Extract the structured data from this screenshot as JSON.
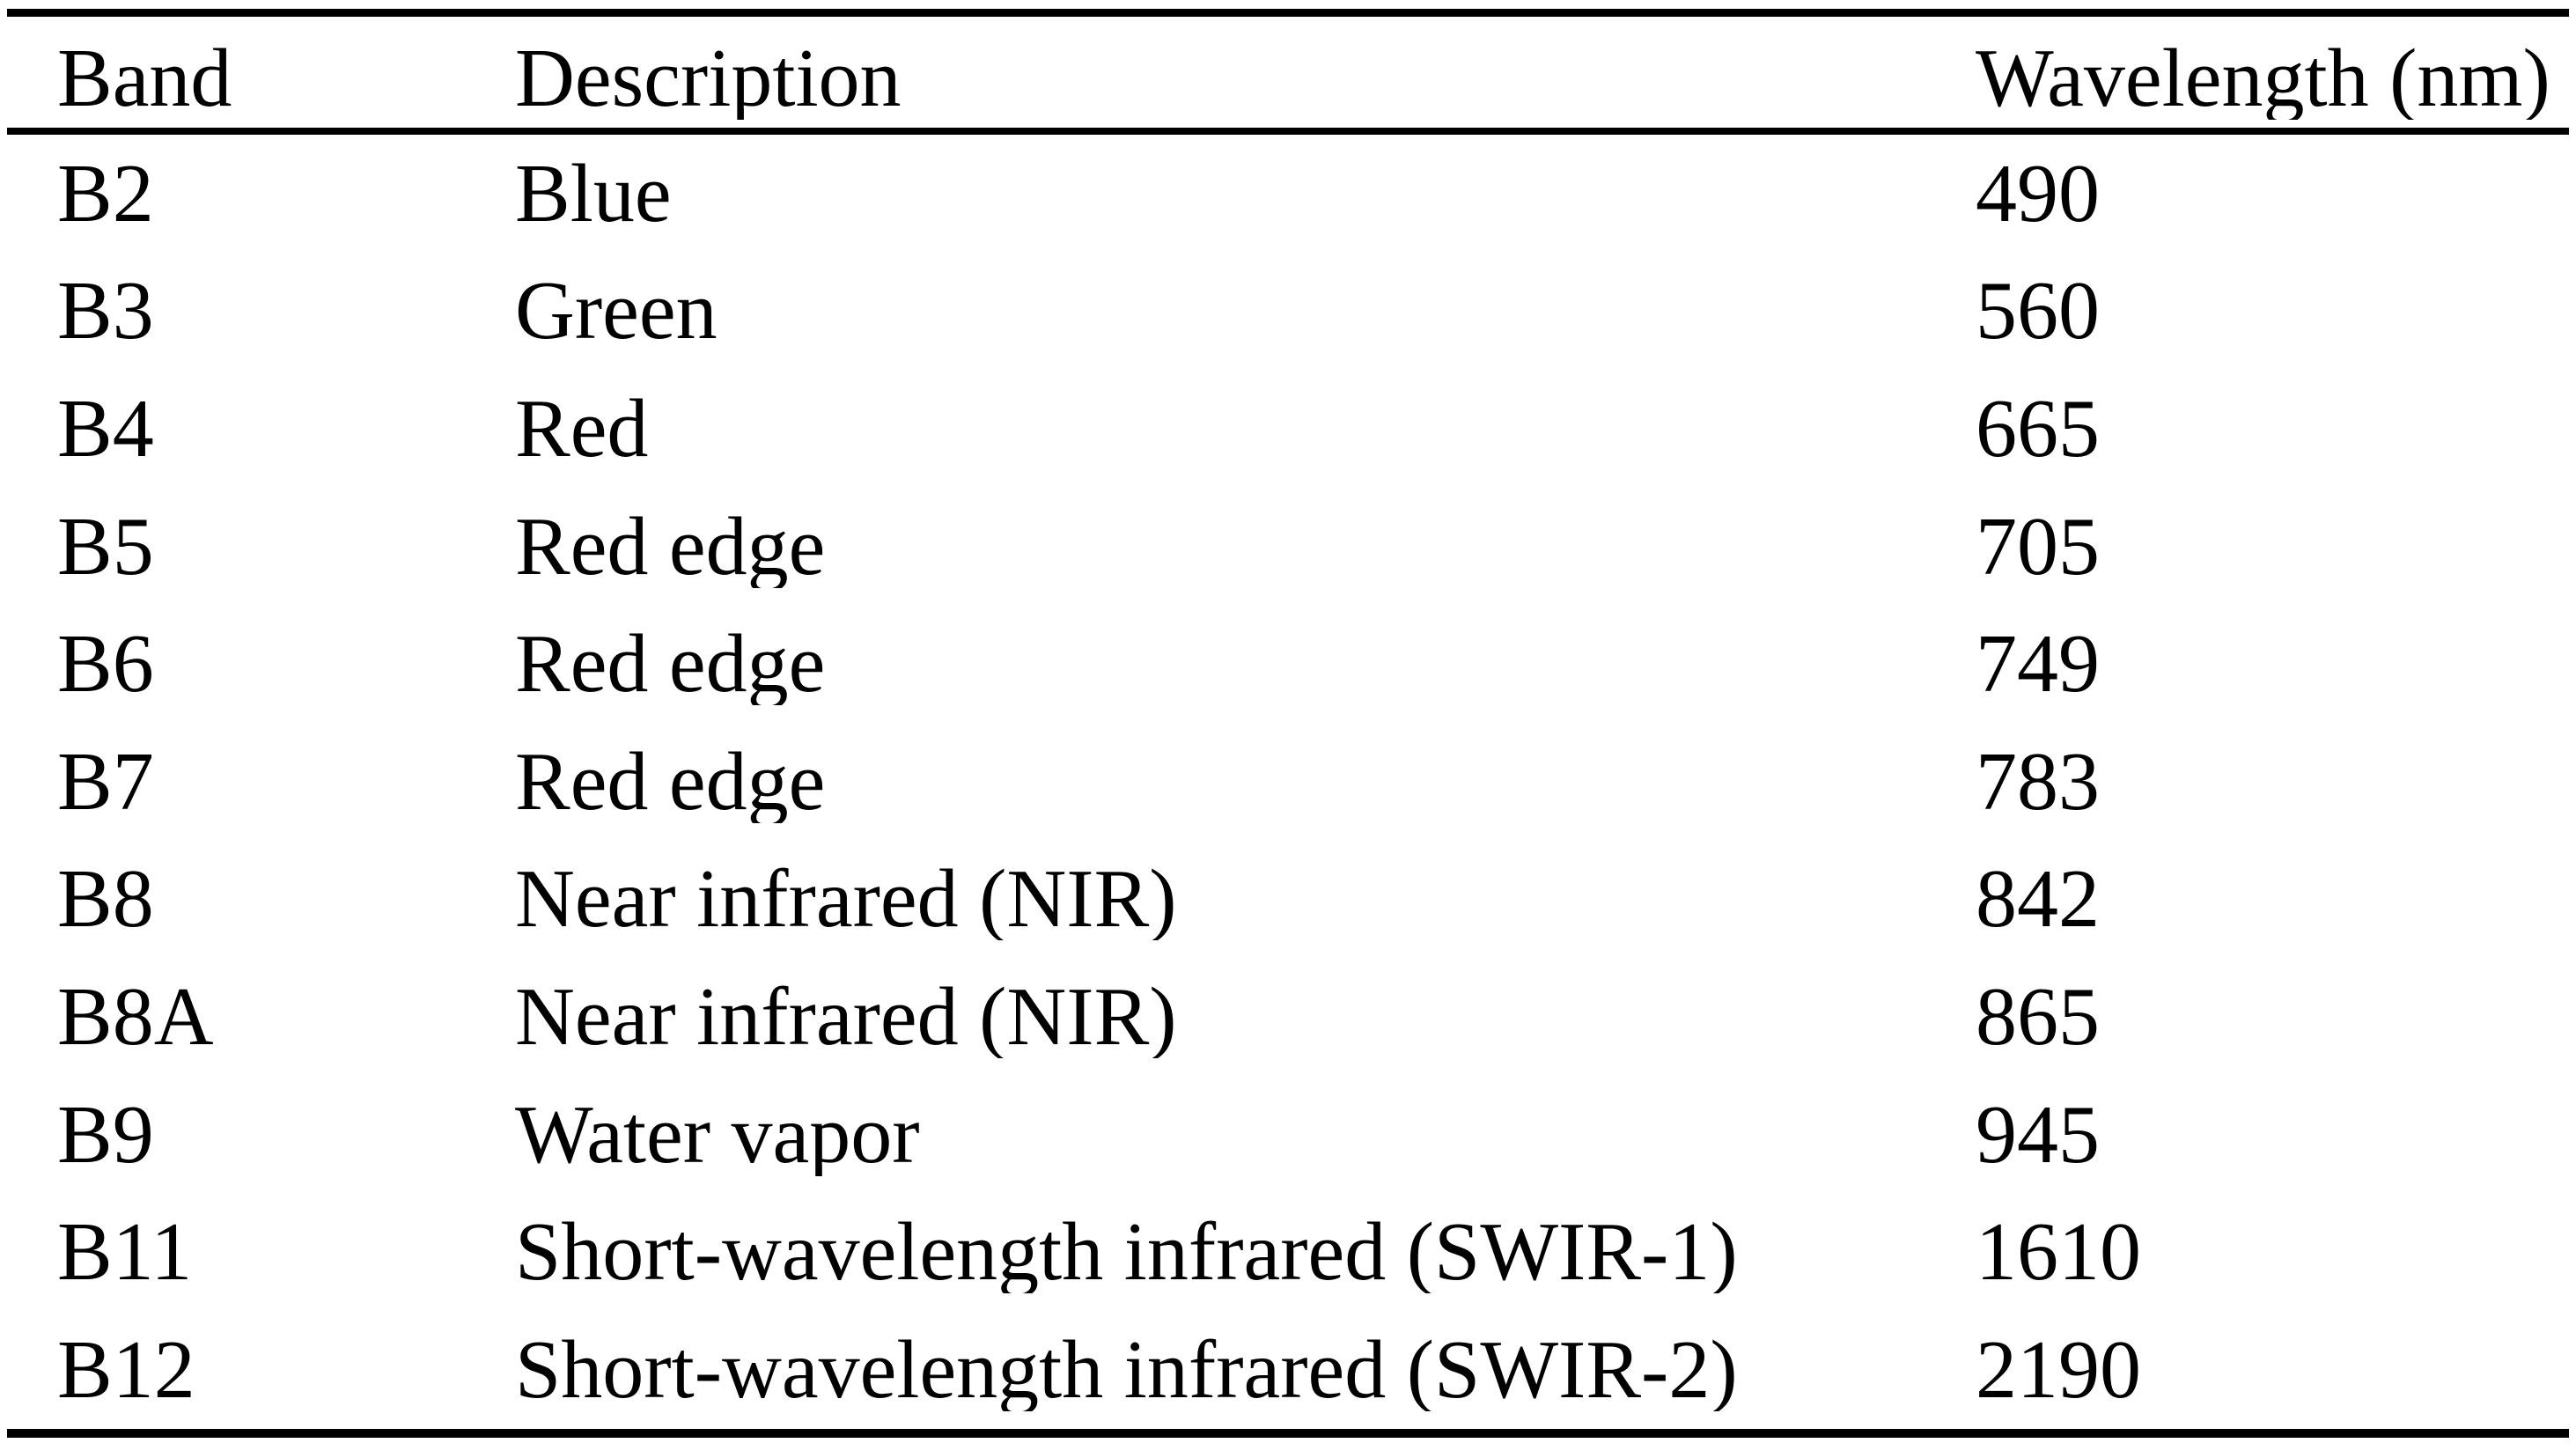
{
  "page": {
    "background_color": "#ffffff",
    "text_color": "#000000",
    "rule_color": "#000000"
  },
  "table": {
    "columns": [
      {
        "label": "Band"
      },
      {
        "label": "Description"
      },
      {
        "label": "Wavelength (nm)"
      }
    ],
    "rows": [
      {
        "band": "B2",
        "description": "Blue",
        "wavelength": "490"
      },
      {
        "band": "B3",
        "description": "Green",
        "wavelength": "560"
      },
      {
        "band": "B4",
        "description": "Red",
        "wavelength": "665"
      },
      {
        "band": "B5",
        "description": "Red edge",
        "wavelength": "705"
      },
      {
        "band": "B6",
        "description": "Red edge",
        "wavelength": "749"
      },
      {
        "band": "B7",
        "description": "Red edge",
        "wavelength": "783"
      },
      {
        "band": "B8",
        "description": "Near infrared (NIR)",
        "wavelength": "842"
      },
      {
        "band": "B8A",
        "description": "Near infrared (NIR)",
        "wavelength": "865"
      },
      {
        "band": "B9",
        "description": "Water vapor",
        "wavelength": "945"
      },
      {
        "band": "B11",
        "description": "Short-wavelength infrared (SWIR-1)",
        "wavelength": "1610"
      },
      {
        "band": "B12",
        "description": "Short-wavelength infrared (SWIR-2)",
        "wavelength": "2190"
      }
    ]
  },
  "chart_data": {
    "type": "table",
    "columns": [
      "Band",
      "Description",
      "Wavelength (nm)"
    ],
    "rows": [
      [
        "B2",
        "Blue",
        490
      ],
      [
        "B3",
        "Green",
        560
      ],
      [
        "B4",
        "Red",
        665
      ],
      [
        "B5",
        "Red edge",
        705
      ],
      [
        "B6",
        "Red edge",
        749
      ],
      [
        "B7",
        "Red edge",
        783
      ],
      [
        "B8",
        "Near infrared (NIR)",
        842
      ],
      [
        "B8A",
        "Near infrared (NIR)",
        865
      ],
      [
        "B9",
        "Water vapor",
        945
      ],
      [
        "B11",
        "Short-wavelength infrared (SWIR-1)",
        1610
      ],
      [
        "B12",
        "Short-wavelength infrared (SWIR-2)",
        2190
      ]
    ]
  }
}
